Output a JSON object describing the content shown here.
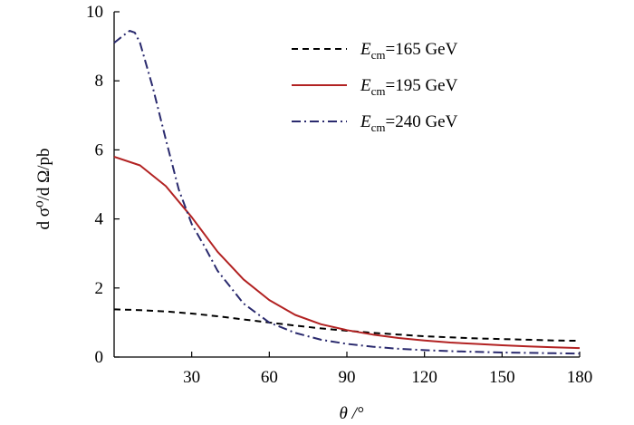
{
  "chart_data": {
    "type": "line",
    "title": "",
    "xlabel": "θ /°",
    "ylabel": "d σ⁰/d Ω/pb",
    "xlim": [
      0,
      180
    ],
    "ylim": [
      0,
      10
    ],
    "xticks": [
      30,
      60,
      90,
      120,
      150,
      180
    ],
    "yticks": [
      0,
      2,
      4,
      6,
      8,
      10
    ],
    "grid": false,
    "legend_position": "top-right",
    "series": [
      {
        "name": "E_cm=165 GeV",
        "legend": {
          "var": "E",
          "sub": "cm",
          "rest": "=165 GeV"
        },
        "style": "dashed",
        "color": "#000000",
        "x": [
          0,
          10,
          20,
          30,
          40,
          50,
          60,
          70,
          80,
          90,
          100,
          110,
          120,
          130,
          140,
          150,
          160,
          170,
          180
        ],
        "y": [
          1.38,
          1.36,
          1.32,
          1.26,
          1.18,
          1.09,
          1.0,
          0.91,
          0.83,
          0.76,
          0.7,
          0.65,
          0.6,
          0.57,
          0.54,
          0.52,
          0.5,
          0.48,
          0.47
        ]
      },
      {
        "name": "E_cm=195 GeV",
        "legend": {
          "var": "E",
          "sub": "cm",
          "rest": "=195 GeV"
        },
        "style": "solid",
        "color": "#b22222",
        "x": [
          0,
          10,
          20,
          30,
          40,
          50,
          60,
          70,
          80,
          90,
          100,
          110,
          120,
          130,
          140,
          150,
          160,
          170,
          180
        ],
        "y": [
          5.8,
          5.55,
          4.95,
          4.05,
          3.05,
          2.25,
          1.65,
          1.22,
          0.95,
          0.78,
          0.65,
          0.55,
          0.48,
          0.42,
          0.38,
          0.34,
          0.31,
          0.28,
          0.26
        ]
      },
      {
        "name": "E_cm=240 GeV",
        "legend": {
          "var": "E",
          "sub": "cm",
          "rest": "=240 GeV"
        },
        "style": "dashdot",
        "color": "#2a2a6e",
        "x": [
          0,
          3,
          6,
          8,
          10,
          15,
          20,
          25,
          30,
          35,
          40,
          50,
          60,
          70,
          80,
          90,
          100,
          110,
          120,
          130,
          140,
          150,
          160,
          170,
          180
        ],
        "y": [
          9.1,
          9.28,
          9.45,
          9.4,
          9.1,
          7.8,
          6.3,
          4.85,
          3.85,
          3.2,
          2.5,
          1.55,
          1.0,
          0.7,
          0.5,
          0.38,
          0.3,
          0.24,
          0.2,
          0.17,
          0.15,
          0.13,
          0.12,
          0.11,
          0.1
        ]
      }
    ]
  }
}
